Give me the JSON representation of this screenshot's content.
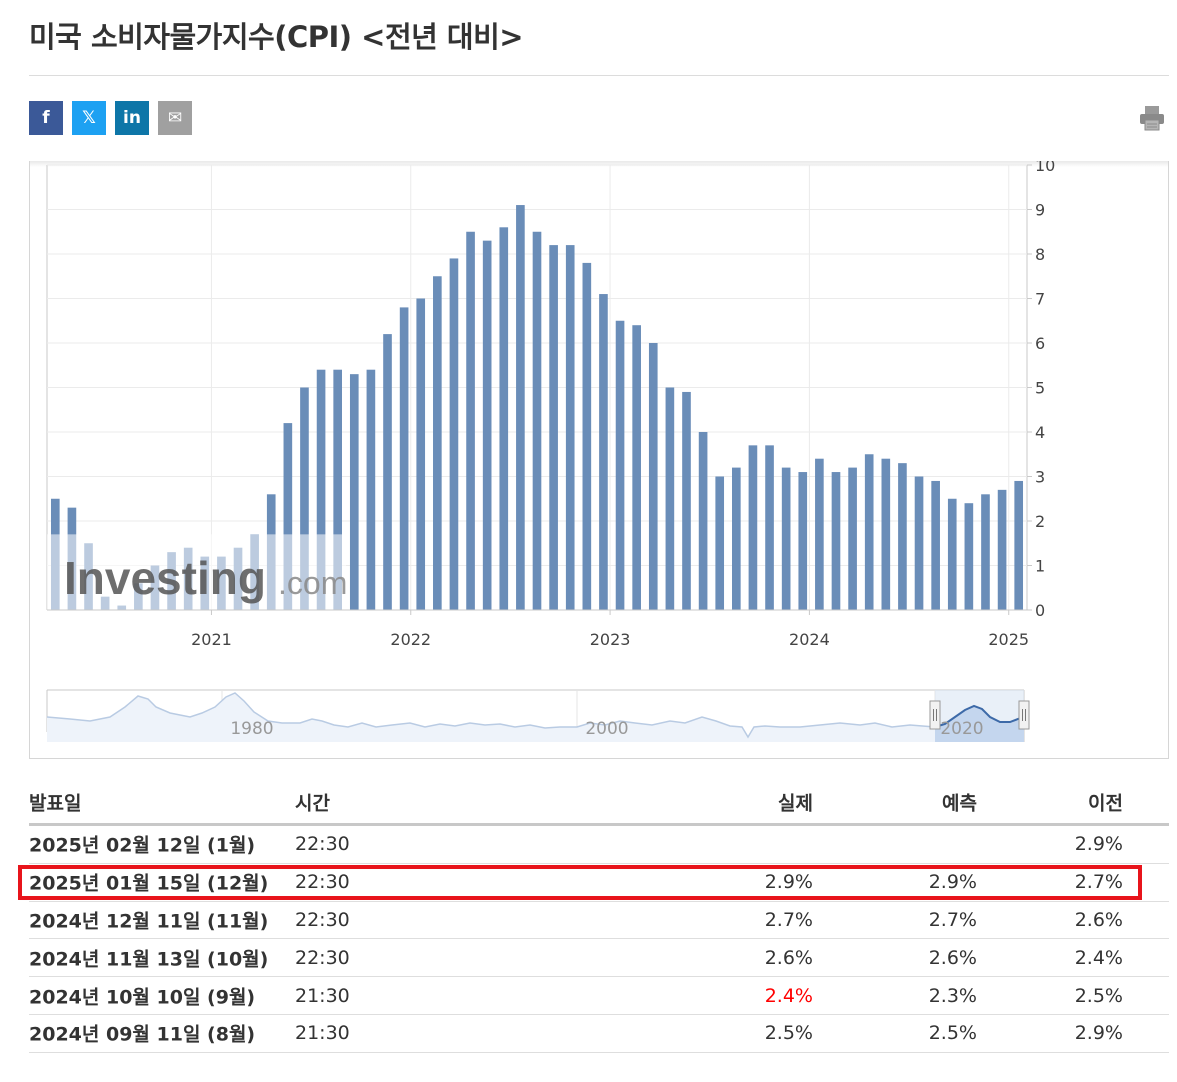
{
  "page_title": "미국 소비자물가지수(CPI) <전년 대비>",
  "share_buttons": [
    {
      "name": "facebook-share-button",
      "glyph": "f",
      "color": "#3b5998"
    },
    {
      "name": "x-share-button",
      "glyph": "𝕏",
      "color": "#1da1f2"
    },
    {
      "name": "linkedin-share-button",
      "glyph": "in",
      "color": "#0e76a8"
    },
    {
      "name": "email-share-button",
      "glyph": "✉",
      "color": "#a0a0a0"
    }
  ],
  "watermark": {
    "brand": "Investing",
    "suffix": ".com"
  },
  "chart_data": {
    "type": "bar",
    "color": "#6a8db8",
    "ylim": [
      0,
      10
    ],
    "y_ticks": [
      "0",
      "1",
      "2",
      "3",
      "4",
      "5",
      "6",
      "7",
      "8",
      "9",
      "10"
    ],
    "x_ticks": [
      {
        "label": "2021",
        "index": 9.9
      },
      {
        "label": "2022",
        "index": 21.9
      },
      {
        "label": "2023",
        "index": 33.9
      },
      {
        "label": "2024",
        "index": 45.9
      },
      {
        "label": "2025",
        "index": 57.9
      }
    ],
    "values": [
      2.5,
      2.3,
      1.5,
      0.3,
      0.1,
      0.6,
      1.0,
      1.3,
      1.4,
      1.2,
      1.2,
      1.4,
      1.7,
      2.6,
      4.2,
      5.0,
      5.4,
      5.4,
      5.3,
      5.4,
      6.2,
      6.8,
      7.0,
      7.5,
      7.9,
      8.5,
      8.3,
      8.6,
      9.1,
      8.5,
      8.2,
      8.2,
      7.8,
      7.1,
      6.5,
      6.4,
      6.0,
      5.0,
      4.9,
      4.0,
      3.0,
      3.2,
      3.7,
      3.7,
      3.2,
      3.1,
      3.4,
      3.1,
      3.2,
      3.5,
      3.4,
      3.3,
      3.0,
      2.9,
      2.5,
      2.4,
      2.6,
      2.7,
      2.9
    ],
    "navigator": {
      "labels": [
        "1980",
        "2000",
        "2020"
      ]
    }
  },
  "table": {
    "headers": {
      "date": "발표일",
      "time": "시간",
      "actual": "실제",
      "forecast": "예측",
      "previous": "이전"
    },
    "rows": [
      {
        "date": "2025년 02월 12일 (1월)",
        "time": "22:30",
        "actual": "",
        "forecast": "",
        "previous": "2.9%"
      },
      {
        "date": "2025년 01월 15일 (12월)",
        "time": "22:30",
        "actual": "2.9%",
        "forecast": "2.9%",
        "previous": "2.7%"
      },
      {
        "date": "2024년 12월 11일 (11월)",
        "time": "22:30",
        "actual": "2.7%",
        "forecast": "2.7%",
        "previous": "2.6%"
      },
      {
        "date": "2024년 11월 13일 (10월)",
        "time": "22:30",
        "actual": "2.6%",
        "forecast": "2.6%",
        "previous": "2.4%"
      },
      {
        "date": "2024년 10월 10일 (9월)",
        "time": "21:30",
        "actual": "2.4%",
        "actual_color": "#ff0000",
        "forecast": "2.3%",
        "previous": "2.5%"
      },
      {
        "date": "2024년 09월 11일 (8월)",
        "time": "21:30",
        "actual": "2.5%",
        "forecast": "2.5%",
        "previous": "2.9%"
      }
    ]
  }
}
